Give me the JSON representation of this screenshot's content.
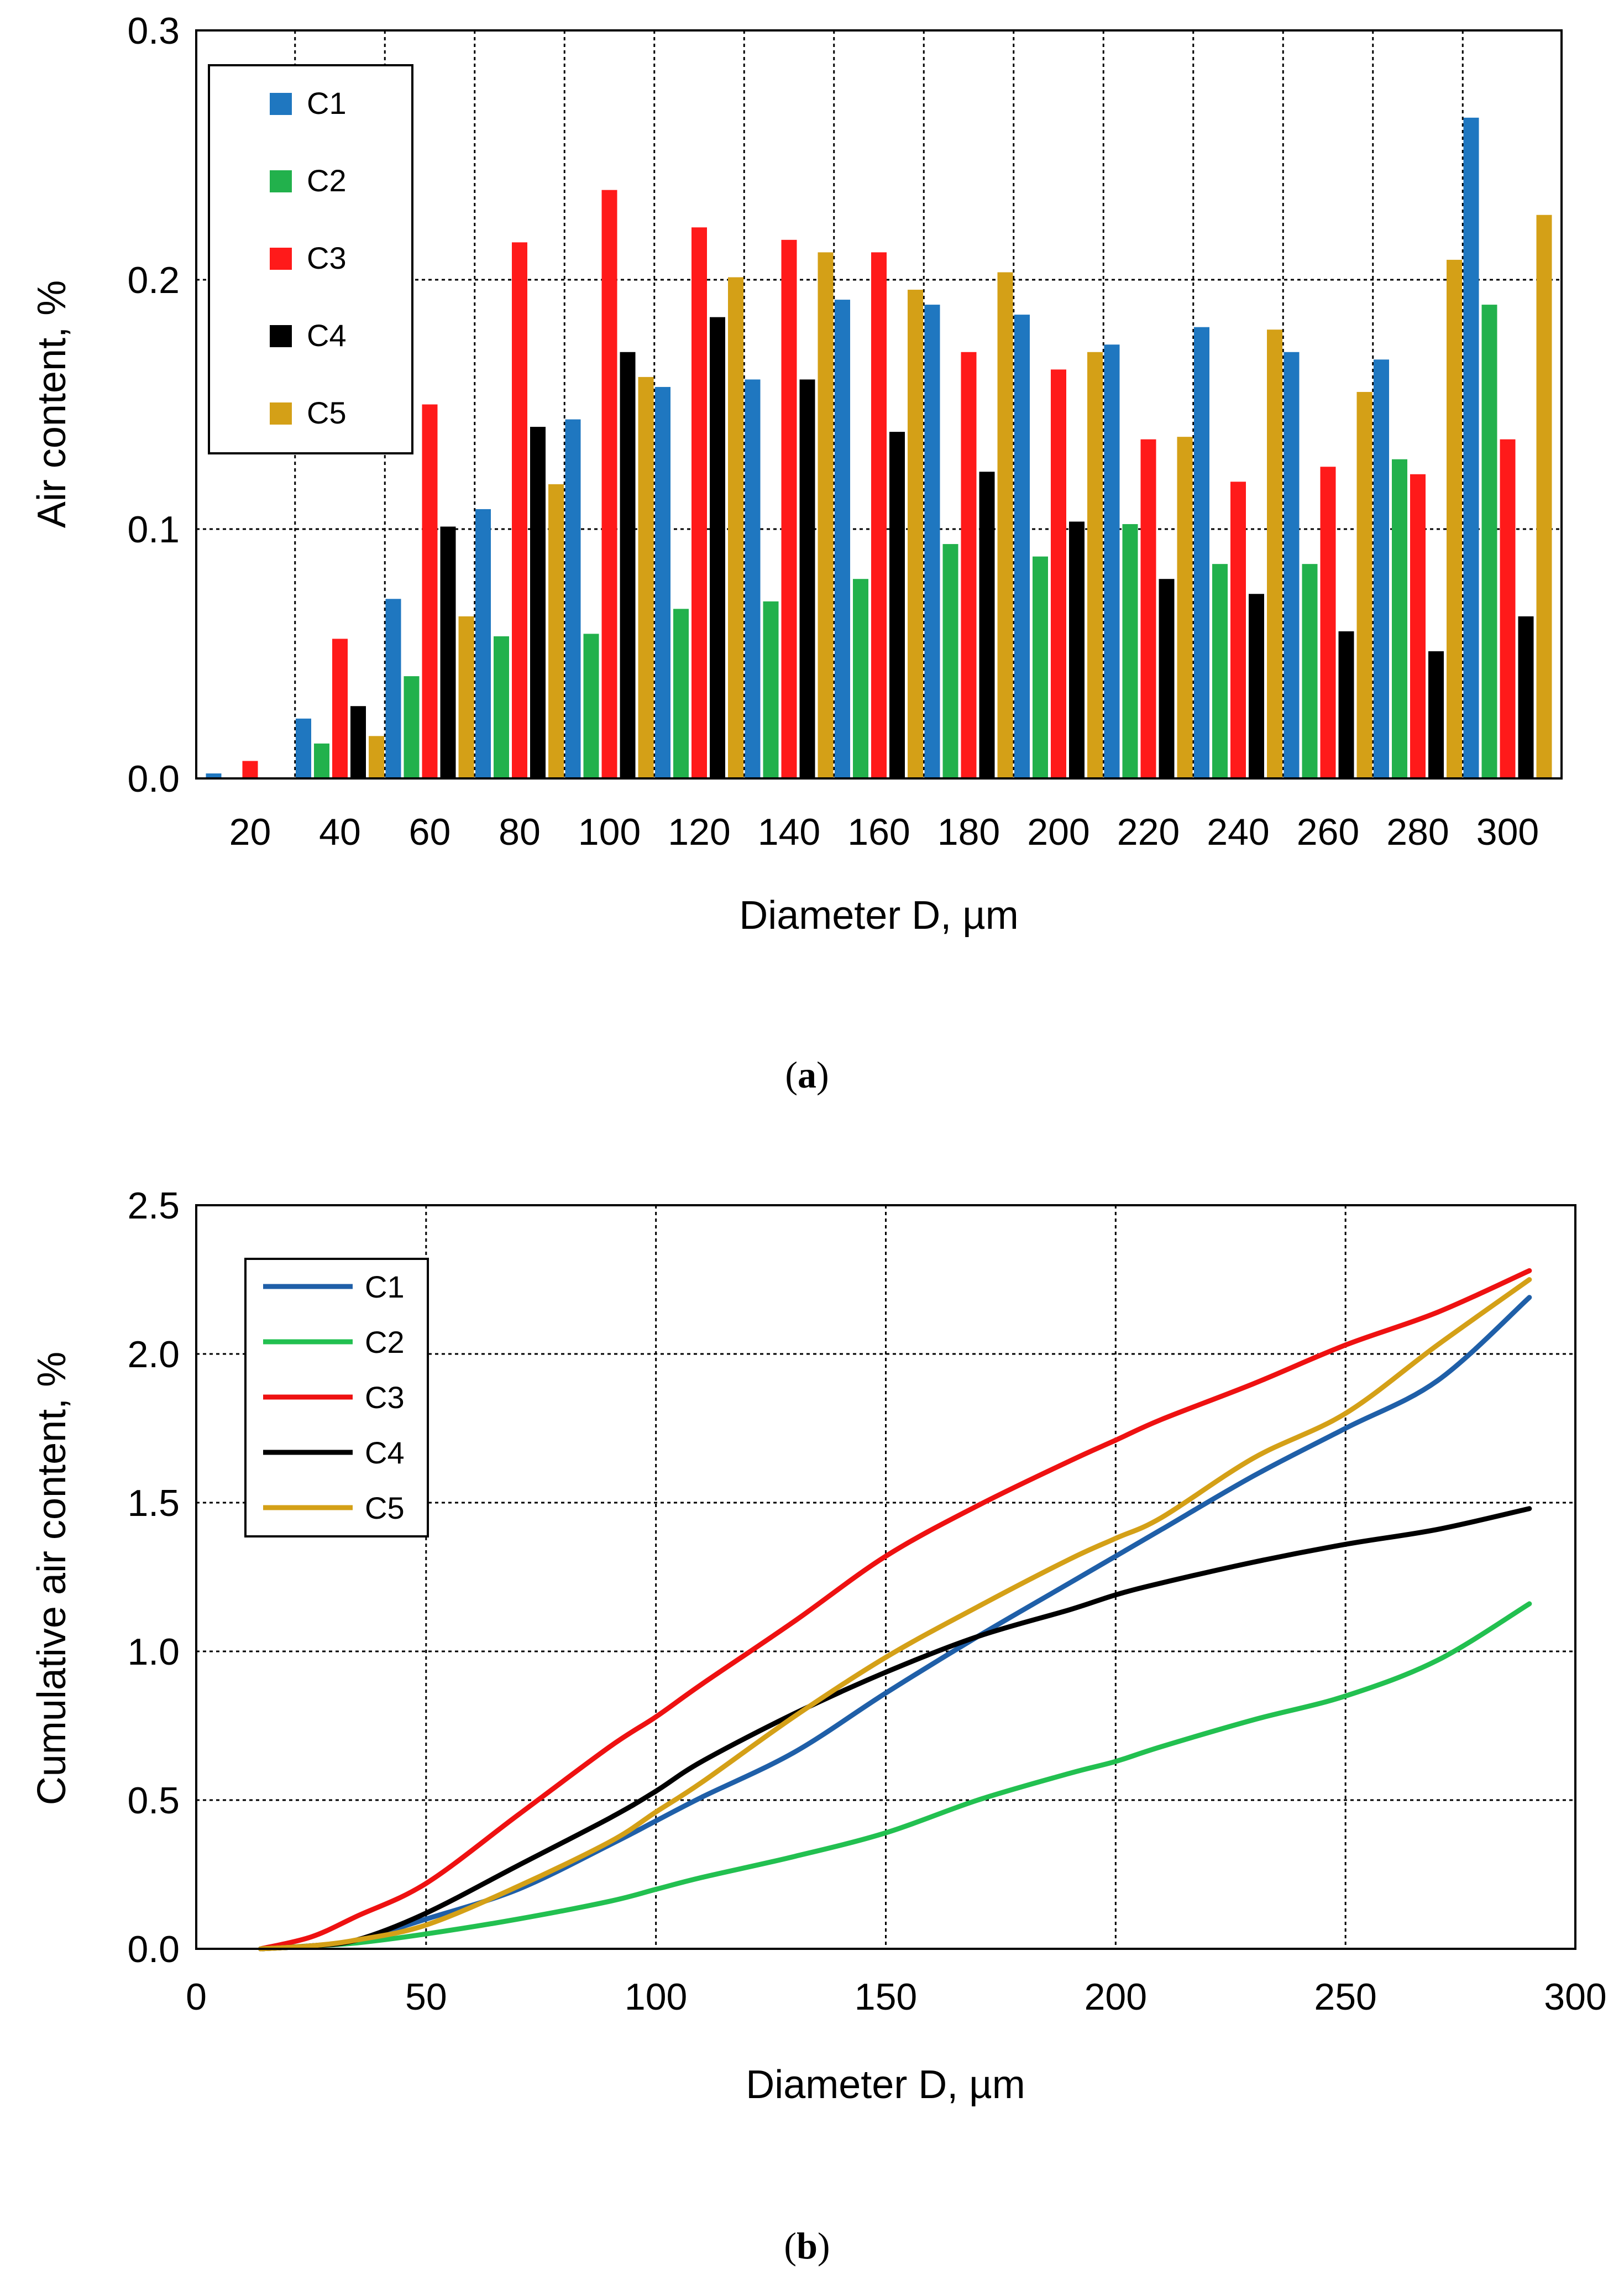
{
  "colors": {
    "C1": "#1f77c0",
    "C2": "#22b14c",
    "C3": "#ff1a1a",
    "C4": "#000000",
    "C5": "#d4a017",
    "C1_line": "#1f5fa8",
    "C2_line": "#22c050",
    "C3_line": "#ee1111",
    "C4_line": "#000000",
    "C5_line": "#d4a017"
  },
  "chart_data": [
    {
      "type": "bar",
      "title": "",
      "caption": {
        "open": "(",
        "letter": "a",
        "close": ")"
      },
      "xlabel": "Diameter D, µm",
      "ylabel": "Air content, %",
      "ylim": [
        0,
        0.3
      ],
      "yticks": [
        "0.0",
        "0.1",
        "0.2",
        "0.3"
      ],
      "grid": true,
      "legend_position": "top-left",
      "categories": [
        "20",
        "40",
        "60",
        "80",
        "100",
        "120",
        "140",
        "160",
        "180",
        "200",
        "220",
        "240",
        "260",
        "280",
        "300"
      ],
      "series": [
        {
          "name": "C1",
          "values": [
            0.002,
            0.024,
            0.072,
            0.108,
            0.144,
            0.157,
            0.16,
            0.192,
            0.19,
            0.186,
            0.174,
            0.181,
            0.171,
            0.168,
            0.265
          ]
        },
        {
          "name": "C2",
          "values": [
            0.0,
            0.014,
            0.041,
            0.057,
            0.058,
            0.068,
            0.071,
            0.08,
            0.094,
            0.089,
            0.102,
            0.086,
            0.086,
            0.128,
            0.19
          ]
        },
        {
          "name": "C3",
          "values": [
            0.007,
            0.056,
            0.15,
            0.215,
            0.236,
            0.221,
            0.216,
            0.211,
            0.171,
            0.164,
            0.136,
            0.119,
            0.125,
            0.122,
            0.136
          ]
        },
        {
          "name": "C4",
          "values": [
            0.0,
            0.029,
            0.101,
            0.141,
            0.171,
            0.185,
            0.16,
            0.139,
            0.123,
            0.103,
            0.08,
            0.074,
            0.059,
            0.051,
            0.065
          ]
        },
        {
          "name": "C5",
          "values": [
            0.0,
            0.017,
            0.065,
            0.118,
            0.161,
            0.201,
            0.211,
            0.196,
            0.203,
            0.171,
            0.137,
            0.18,
            0.155,
            0.208,
            0.226
          ]
        }
      ]
    },
    {
      "type": "line",
      "title": "",
      "caption": {
        "open": "(",
        "letter": "b",
        "close": ")"
      },
      "xlabel": "Diameter D, µm",
      "ylabel": "Cumulative air content, %",
      "xlim": [
        0,
        300
      ],
      "ylim": [
        0,
        2.5
      ],
      "xticks": [
        "0",
        "50",
        "100",
        "150",
        "200",
        "250",
        "300"
      ],
      "yticks": [
        "0.0",
        "0.5",
        "1.0",
        "1.5",
        "2.0",
        "2.5"
      ],
      "grid": true,
      "legend_position": "top-left",
      "x": [
        14,
        25,
        35,
        50,
        70,
        90,
        100,
        110,
        130,
        150,
        170,
        190,
        200,
        210,
        230,
        250,
        270,
        290
      ],
      "series": [
        {
          "name": "C1",
          "values": [
            0.0,
            0.01,
            0.03,
            0.1,
            0.2,
            0.35,
            0.43,
            0.51,
            0.66,
            0.86,
            1.05,
            1.23,
            1.32,
            1.41,
            1.59,
            1.75,
            1.91,
            2.19
          ]
        },
        {
          "name": "C2",
          "values": [
            0.0,
            0.01,
            0.02,
            0.05,
            0.1,
            0.16,
            0.2,
            0.24,
            0.31,
            0.39,
            0.5,
            0.59,
            0.63,
            0.68,
            0.77,
            0.85,
            0.97,
            1.16
          ]
        },
        {
          "name": "C3",
          "values": [
            0.0,
            0.04,
            0.11,
            0.22,
            0.45,
            0.68,
            0.78,
            0.89,
            1.1,
            1.32,
            1.49,
            1.64,
            1.71,
            1.78,
            1.9,
            2.03,
            2.14,
            2.28
          ]
        },
        {
          "name": "C4",
          "values": [
            0.0,
            0.01,
            0.03,
            0.12,
            0.28,
            0.44,
            0.53,
            0.63,
            0.79,
            0.93,
            1.05,
            1.14,
            1.19,
            1.23,
            1.3,
            1.36,
            1.41,
            1.48
          ]
        },
        {
          "name": "C5",
          "values": [
            0.0,
            0.01,
            0.03,
            0.08,
            0.21,
            0.36,
            0.46,
            0.56,
            0.78,
            0.98,
            1.15,
            1.31,
            1.38,
            1.45,
            1.65,
            1.8,
            2.03,
            2.25
          ]
        }
      ]
    }
  ]
}
